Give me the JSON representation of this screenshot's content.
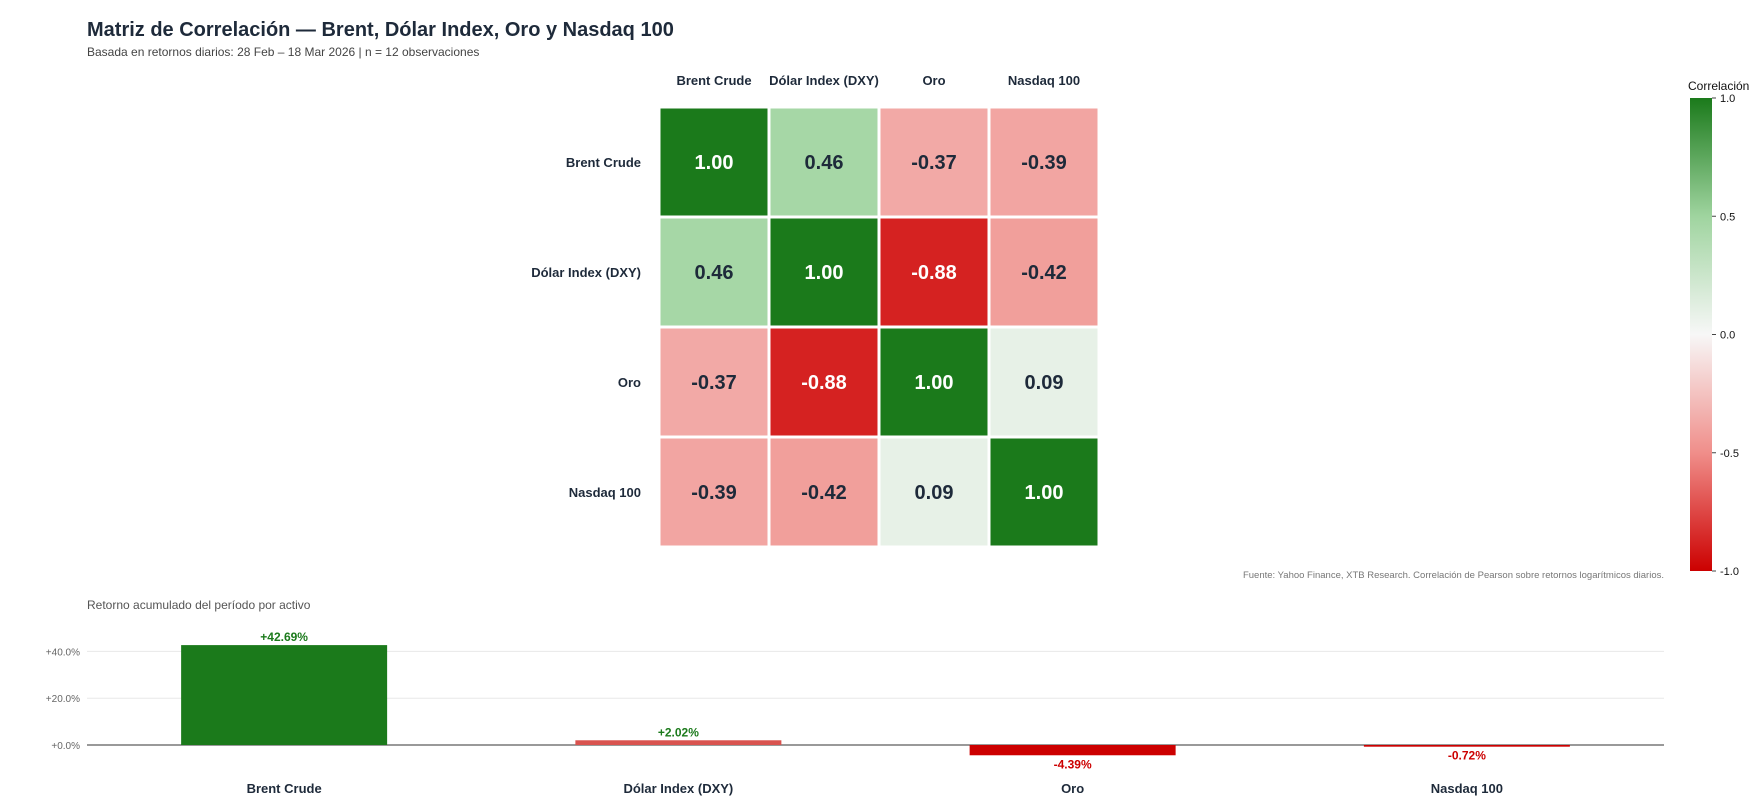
{
  "chart_data": [
    {
      "type": "heatmap",
      "title": "Matriz de Correlación — Brent, Dólar Index, Oro y Nasdaq 100",
      "subtitle": "Basada en retornos diarios: 28 Feb – 18 Mar 2026 | n = 12 observaciones",
      "labels": [
        "Brent Crude",
        "Dólar Index (DXY)",
        "Oro",
        "Nasdaq 100"
      ],
      "matrix": [
        [
          1.0,
          0.46,
          -0.37,
          -0.39
        ],
        [
          0.46,
          1.0,
          -0.88,
          -0.42
        ],
        [
          -0.37,
          -0.88,
          1.0,
          0.09
        ],
        [
          -0.39,
          -0.42,
          0.09,
          1.0
        ]
      ],
      "value_labels": [
        [
          "1.00",
          "0.46",
          "-0.37",
          "-0.39"
        ],
        [
          "0.46",
          "1.00",
          "-0.88",
          "-0.42"
        ],
        [
          "-0.37",
          "-0.88",
          "1.00",
          "0.09"
        ],
        [
          "-0.39",
          "-0.42",
          "0.09",
          "1.00"
        ]
      ],
      "legend": {
        "title": "Correlación",
        "range": [
          -1.0,
          1.0
        ],
        "ticks": [
          "1.0",
          "0.5",
          "0.0",
          "-0.5",
          "-1.0"
        ],
        "tick_values": [
          1.0,
          0.5,
          0.0,
          -0.5,
          -1.0
        ],
        "placement": "right"
      },
      "colors": {
        "negative": "#cc0000",
        "neutral": "#f7f7f7",
        "positive": "#1b7a1b"
      },
      "source": "Fuente: Yahoo Finance, XTB Research. Correlación de Pearson sobre retornos logarítmicos diarios."
    },
    {
      "type": "bar",
      "title": "Retorno acumulado del período por activo",
      "categories": [
        "Brent Crude",
        "Dólar Index (DXY)",
        "Oro",
        "Nasdaq 100"
      ],
      "values": [
        42.69,
        2.02,
        -4.39,
        -0.72
      ],
      "value_labels": [
        "+42.69%",
        "+2.02%",
        "-4.39%",
        "-0.72%"
      ],
      "bar_colors": [
        "#1b7a1b",
        "#d9534f",
        "#cc0000",
        "#cc0000"
      ],
      "label_colors": [
        "#1b7a1b",
        "#1b7a1b",
        "#cc0000",
        "#cc0000"
      ],
      "yticks": [
        0,
        20,
        40
      ],
      "ytick_labels": [
        "+0.0%",
        "+20.0%",
        "+40.0%"
      ],
      "ylim": [
        -5,
        47
      ]
    }
  ]
}
